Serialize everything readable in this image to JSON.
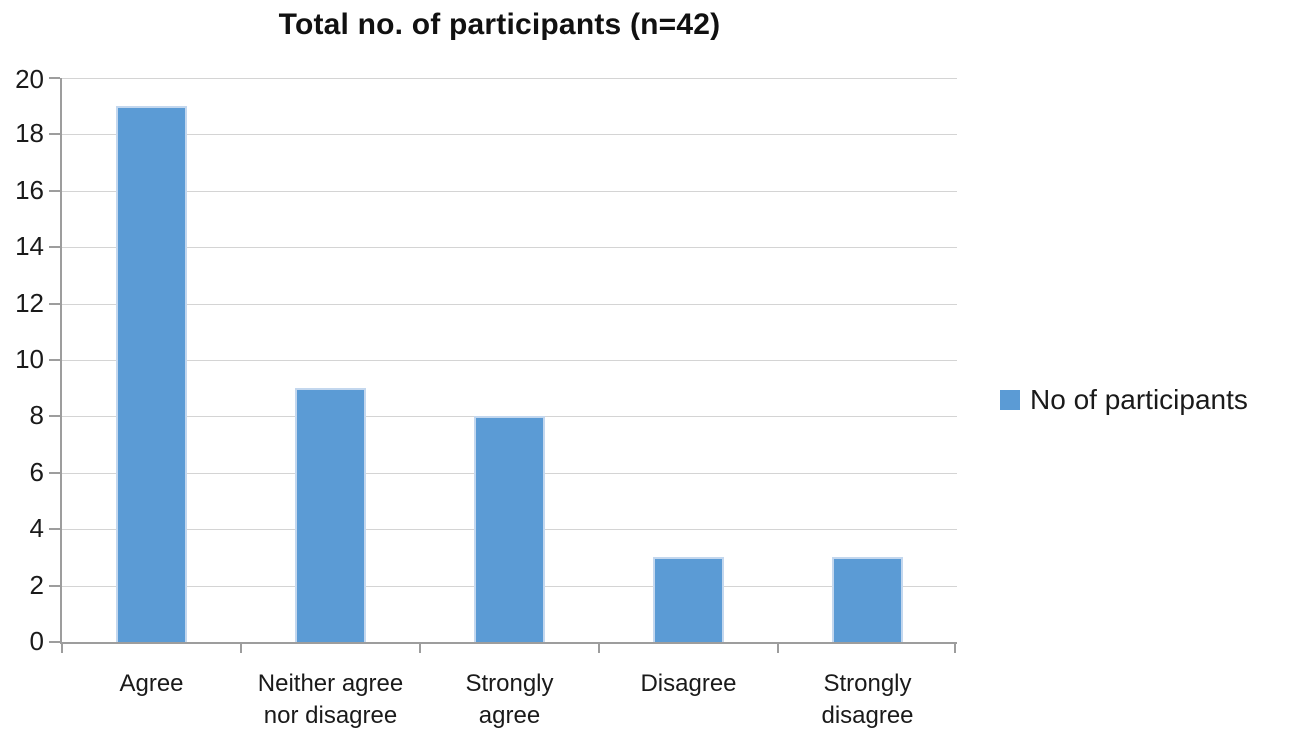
{
  "chart_data": {
    "type": "bar",
    "title": "Total no. of participants (n=42)",
    "categories": [
      "Agree",
      "Neither agree nor disagree",
      "Strongly agree",
      "Disagree",
      "Strongly disagree"
    ],
    "series": [
      {
        "name": "No of participants",
        "values": [
          19,
          9,
          8,
          3,
          3
        ]
      }
    ],
    "xlabel": "",
    "ylabel": "",
    "ylim": [
      0,
      20
    ],
    "ytick_step": 2,
    "grid": true,
    "legend_position": "right",
    "bar_color": "#5b9bd5",
    "bar_border_color": "#c3d7ee",
    "gridline_color": "#d4d4d4",
    "axis_color": "#9d9d9d",
    "text_color": "#1a1a1a"
  }
}
